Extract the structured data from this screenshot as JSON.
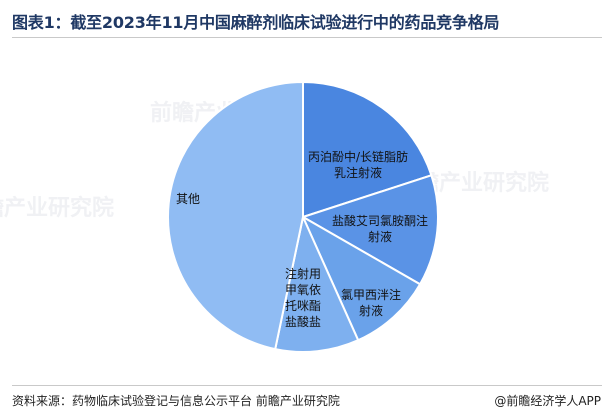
{
  "title": "图表1：截至2023年11月中国麻醉剂临床试验进行中的药品竞争格局",
  "source": "资料来源：药物临床试验登记与信息公示平台 前瞻产业研究院",
  "brand": "@前瞻经济学人APP",
  "watermark": "前瞻产业研究院",
  "chart_data": {
    "type": "pie",
    "title": "图表1：截至2023年11月中国麻醉剂临床试验进行中的药品竞争格局",
    "slices": [
      {
        "name": "丙泊酚中/长链脂肪乳注射液",
        "label_lines": [
          "丙泊酚中/长链脂肪",
          "乳注射液"
        ],
        "value": 20,
        "color": "#4a86e0"
      },
      {
        "name": "盐酸艾司氯胺酮注射液",
        "label_lines": [
          "盐酸艾司氯胺酮注",
          "射液"
        ],
        "value": 13.3,
        "color": "#5a93e6"
      },
      {
        "name": "氯甲西泮注射液",
        "label_lines": [
          "氯甲西泮注",
          "射液"
        ],
        "value": 10,
        "color": "#6aa2ea"
      },
      {
        "name": "注射用甲氧依托咪酯盐酸盐",
        "label_lines": [
          "注射用",
          "甲氧依",
          "托咪酯",
          "盐酸盐"
        ],
        "value": 10,
        "color": "#7eb0ef"
      },
      {
        "name": "其他",
        "label_lines": [
          "其他"
        ],
        "value": 46.7,
        "color": "#90bcf3"
      }
    ]
  }
}
